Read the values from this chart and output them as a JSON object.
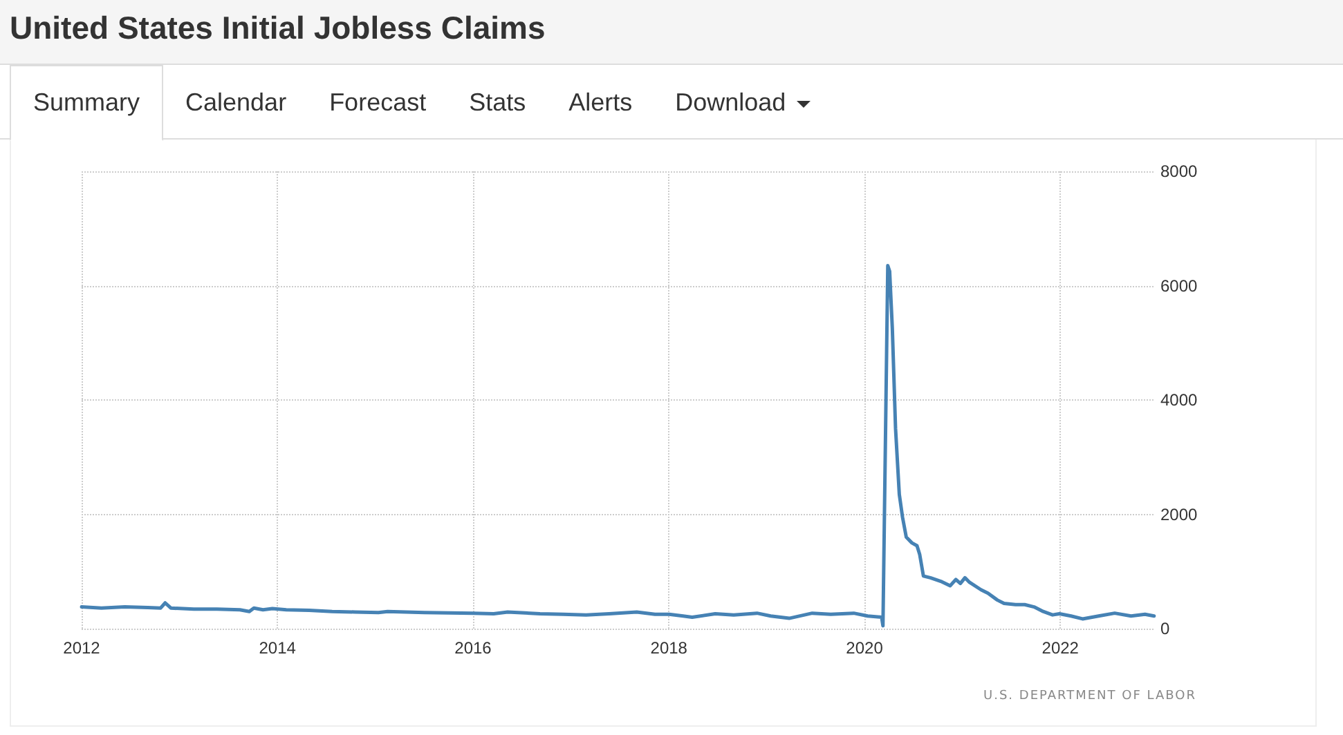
{
  "chart_data": {
    "type": "line",
    "title": "United States Initial Jobless Claims",
    "annotations": [
      "Summary",
      "Calendar",
      "Forecast",
      "Stats",
      "Alerts",
      "Download",
      "U.S. DEPARTMENT OF LABOR"
    ],
    "x": [
      "2012-01-01",
      "2012-03-15",
      "2012-06-10",
      "2012-09-04",
      "2012-10-22",
      "2012-11-08",
      "2012-11-29",
      "2013-02-23",
      "2013-05-20",
      "2013-08-14",
      "2013-09-18",
      "2013-10-05",
      "2013-11-08",
      "2013-12-13",
      "2014-02-03",
      "2014-04-29",
      "2014-07-24",
      "2014-10-18",
      "2015-01-13",
      "2015-02-16",
      "2015-07-04",
      "2016-01-01",
      "2016-03-18",
      "2016-05-09",
      "2016-09-07",
      "2016-12-02",
      "2017-02-26",
      "2017-05-23",
      "2017-09-03",
      "2017-11-10",
      "2018-01-02",
      "2018-02-23",
      "2018-03-29",
      "2018-06-23",
      "2018-08-31",
      "2018-11-26",
      "2019-01-16",
      "2019-03-26",
      "2019-06-20",
      "2019-08-28",
      "2019-11-22",
      "2020-01-13",
      "2020-03-05",
      "2020-03-10",
      "2020-03-28",
      "2020-04-04",
      "2020-04-14",
      "2020-04-26",
      "2020-05-10",
      "2020-05-22",
      "2020-06-05",
      "2020-06-26",
      "2020-07-15",
      "2020-07-25",
      "2020-08-08",
      "2020-09-03",
      "2020-10-16",
      "2020-11-16",
      "2020-12-07",
      "2020-12-24",
      "2021-01-10",
      "2021-01-27",
      "2021-03-11",
      "2021-04-06",
      "2021-05-11",
      "2021-06-05",
      "2021-07-18",
      "2021-08-21",
      "2021-09-25",
      "2021-10-29",
      "2021-12-03",
      "2021-12-29",
      "2022-02-10",
      "2022-03-25",
      "2022-05-24",
      "2022-07-23",
      "2022-09-22",
      "2022-11-13",
      "2022-12-17"
    ],
    "values": [
      380,
      360,
      380,
      370,
      360,
      450,
      360,
      340,
      340,
      330,
      300,
      360,
      330,
      350,
      330,
      320,
      300,
      290,
      280,
      300,
      280,
      270,
      260,
      290,
      260,
      250,
      240,
      260,
      290,
      250,
      250,
      220,
      200,
      260,
      240,
      270,
      220,
      180,
      270,
      250,
      270,
      220,
      200,
      50,
      6350,
      6250,
      5250,
      3500,
      2350,
      1950,
      1600,
      1500,
      1450,
      1300,
      920,
      890,
      820,
      750,
      860,
      790,
      890,
      810,
      680,
      620,
      500,
      440,
      420,
      420,
      380,
      300,
      240,
      260,
      220,
      170,
      220,
      270,
      220,
      250,
      220
    ],
    "color": "#4682b4",
    "xlim": [
      "2012-01-01",
      "2022-12-20"
    ],
    "xticks": [
      "2012",
      "2014",
      "2016",
      "2018",
      "2020",
      "2022"
    ],
    "ylim": [
      0,
      8000
    ],
    "yticks": [
      0,
      2000,
      4000,
      6000,
      8000
    ],
    "grid": true
  }
}
